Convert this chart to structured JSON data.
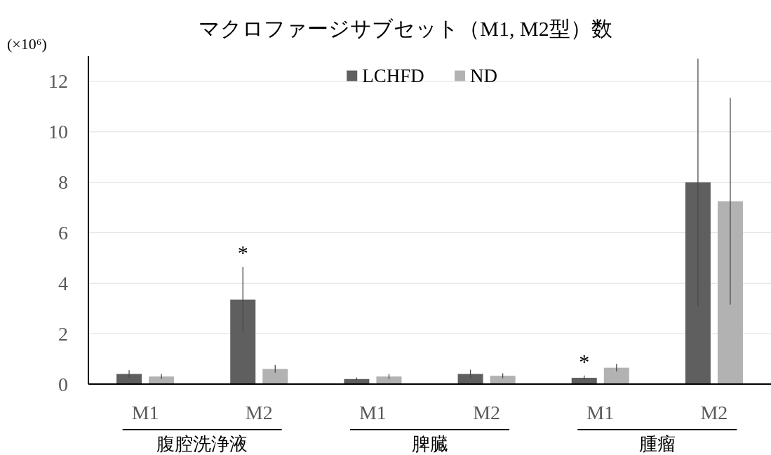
{
  "chart_data": {
    "type": "bar",
    "title": "マクロファージサブセット（M1, M2型）数",
    "ylabel": "(×10⁶)",
    "categories": [
      "M1",
      "M2",
      "M1",
      "M2",
      "M1",
      "M2"
    ],
    "series": [
      {
        "name": "LCHFD",
        "color": "#5f5f5f",
        "values": [
          0.4,
          3.35,
          0.2,
          0.4,
          0.25,
          8.0
        ],
        "errors": [
          0.15,
          1.3,
          0.06,
          0.17,
          0.09,
          4.9
        ],
        "value_labels": [
          null,
          "*",
          null,
          null,
          "*",
          null
        ]
      },
      {
        "name": "ND",
        "color": "#b2b2b2",
        "values": [
          0.3,
          0.6,
          0.3,
          0.33,
          0.65,
          7.25
        ],
        "errors": [
          0.1,
          0.15,
          0.1,
          0.1,
          0.15,
          4.1
        ]
      }
    ],
    "ylim": [
      0,
      13
    ],
    "yticks": [
      0,
      2,
      4,
      6,
      8,
      10,
      12
    ],
    "grid": "y",
    "legend": "top",
    "annotations": [
      "腹腔洗浄液",
      "脾臓",
      "腫瘤"
    ]
  }
}
